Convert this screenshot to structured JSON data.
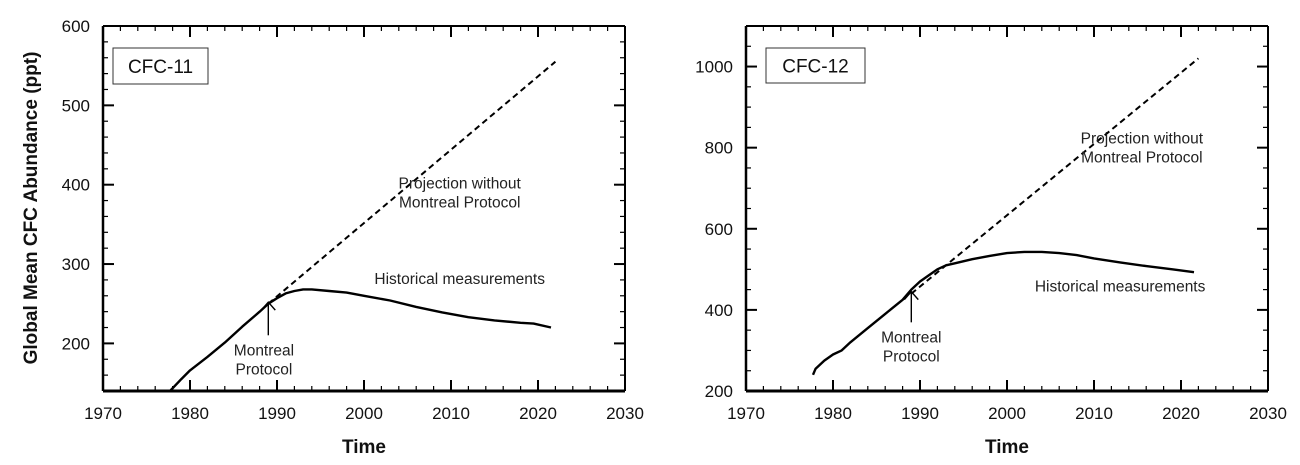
{
  "chart_data": [
    {
      "type": "line",
      "panel_label": "CFC-11",
      "xlabel": "Time",
      "ylabel": "Global Mean CFC Abundance (ppt)",
      "xlim": [
        1970,
        2030
      ],
      "ylim": [
        140,
        600
      ],
      "xticks": [
        1970,
        1980,
        1990,
        2000,
        2010,
        2020,
        2030
      ],
      "yticks": [
        200,
        300,
        400,
        500,
        600
      ],
      "series": [
        {
          "name": "Historical measurements",
          "style": "solid",
          "x": [
            1977.7,
            1979,
            1980,
            1982,
            1984,
            1986,
            1988,
            1989,
            1990,
            1991,
            1992,
            1993,
            1994,
            1996,
            1998,
            2000,
            2003,
            2006,
            2009,
            2012,
            2015,
            2018,
            2019.5,
            2021.5
          ],
          "y": [
            140,
            155,
            166,
            183,
            201,
            221,
            240,
            250,
            257,
            263,
            266,
            268,
            268,
            266,
            264,
            260,
            254,
            246,
            239,
            233,
            229,
            226,
            225,
            220
          ]
        },
        {
          "name": "Projection without Montreal Protocol",
          "style": "dashed",
          "x": [
            1989,
            2022
          ],
          "y": [
            250,
            555
          ]
        }
      ],
      "annotations": [
        {
          "text": [
            "Projection without",
            "Montreal Protocol"
          ],
          "x": 2011,
          "y": 395
        },
        {
          "text": [
            "Historical measurements"
          ],
          "x": 2011,
          "y": 275
        },
        {
          "text": [
            "Montreal",
            "Protocol"
          ],
          "x": 1988.5,
          "y": 185,
          "arrow_to": [
            1989,
            252
          ]
        }
      ]
    },
    {
      "type": "line",
      "panel_label": "CFC-12",
      "xlabel": "Time",
      "ylabel": "",
      "xlim": [
        1970,
        2030
      ],
      "ylim": [
        200,
        1100
      ],
      "xticks": [
        1970,
        1980,
        1990,
        2000,
        2010,
        2020,
        2030
      ],
      "yticks": [
        200,
        400,
        600,
        800,
        1000
      ],
      "series": [
        {
          "name": "Historical measurements",
          "style": "solid",
          "x": [
            1977.7,
            1978,
            1979,
            1980,
            1981,
            1982,
            1984,
            1986,
            1988,
            1989,
            1990,
            1991,
            1992,
            1993,
            1994,
            1996,
            1998,
            2000,
            2002,
            2004,
            2006,
            2008,
            2010,
            2013,
            2016,
            2019,
            2021.5
          ],
          "y": [
            240,
            255,
            275,
            290,
            300,
            320,
            355,
            390,
            425,
            450,
            470,
            485,
            500,
            510,
            515,
            525,
            533,
            540,
            543,
            543,
            540,
            535,
            527,
            517,
            508,
            500,
            493
          ]
        },
        {
          "name": "Projection without Montreal Protocol",
          "style": "dashed",
          "x": [
            1989,
            2022
          ],
          "y": [
            440,
            1020
          ]
        }
      ],
      "annotations": [
        {
          "text": [
            "Projection without",
            "Montreal Protocol"
          ],
          "x": 2015.5,
          "y": 810
        },
        {
          "text": [
            "Historical measurements"
          ],
          "x": 2013,
          "y": 445
        },
        {
          "text": [
            "Montreal",
            "Protocol"
          ],
          "x": 1989,
          "y": 320,
          "arrow_to": [
            1989,
            445
          ]
        }
      ]
    }
  ]
}
